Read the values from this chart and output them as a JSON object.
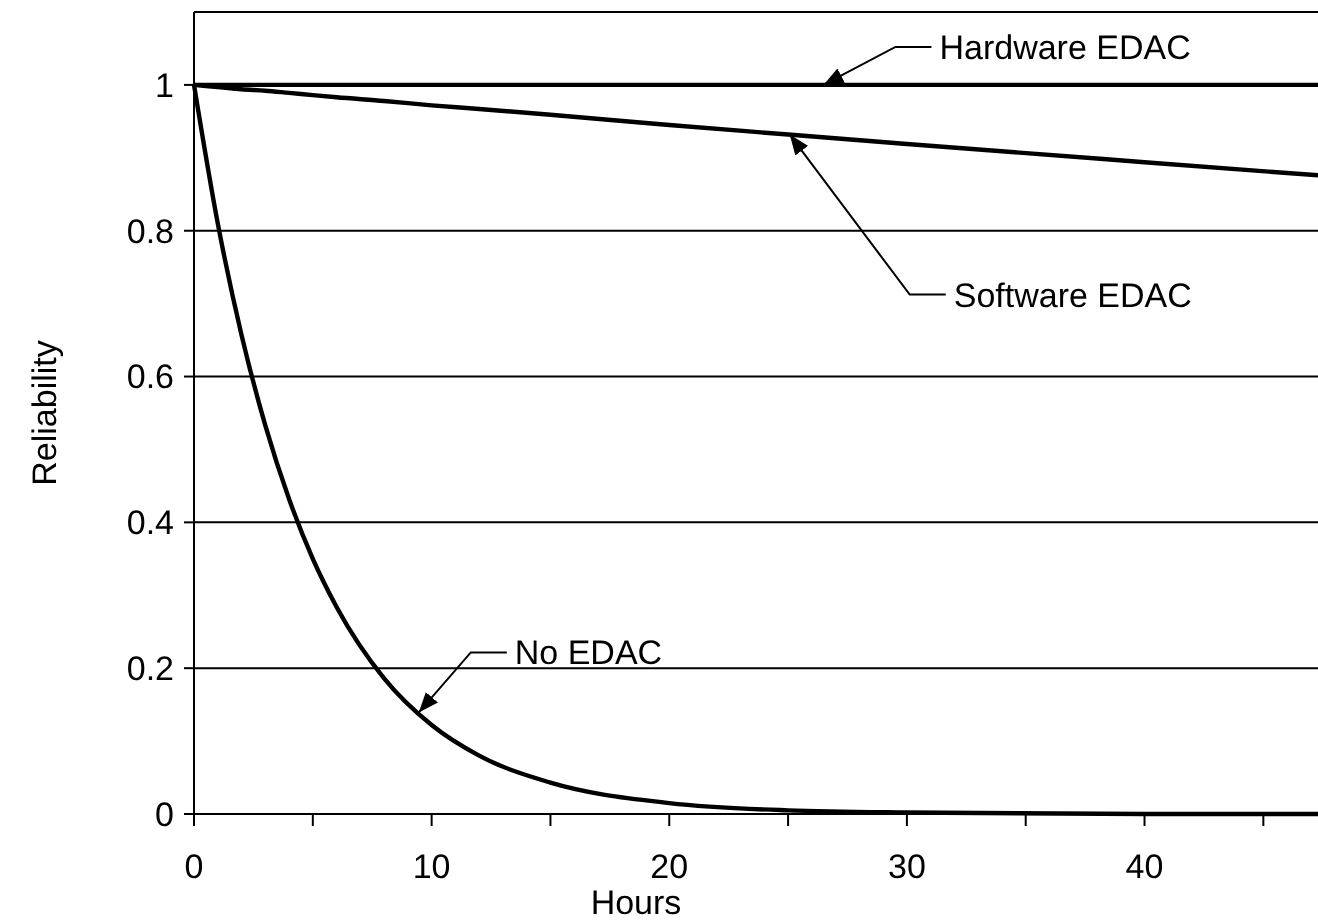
{
  "chart_data": {
    "type": "line",
    "xlabel": "Hours",
    "ylabel": "Reliability",
    "x": [
      0,
      1,
      2,
      3,
      4,
      5,
      6,
      8,
      10,
      12,
      15,
      20,
      25,
      30,
      40,
      47.3
    ],
    "series": [
      {
        "name": "Hardware EDAC",
        "color": "#000000",
        "values": [
          1,
          1,
          1,
          1,
          1,
          1,
          1,
          1,
          1,
          1,
          1,
          1,
          1,
          1,
          1,
          1
        ]
      },
      {
        "name": "Software EDAC",
        "color": "#000000",
        "values": [
          1,
          0.997,
          0.994,
          0.992,
          0.989,
          0.986,
          0.983,
          0.978,
          0.972,
          0.967,
          0.959,
          0.945,
          0.932,
          0.919,
          0.894,
          0.876
        ]
      },
      {
        "name": "No EDAC",
        "color": "#000000",
        "values": [
          1,
          0.81,
          0.657,
          0.533,
          0.432,
          0.35,
          0.284,
          0.186,
          0.122,
          0.08,
          0.043,
          0.015,
          0.005,
          0.002,
          0,
          0
        ]
      }
    ],
    "xlim": [
      0,
      47.3
    ],
    "ylim": [
      0,
      1.1
    ],
    "xticks": [
      0,
      {
        "value": 5,
        "label": null
      },
      10,
      {
        "value": 15,
        "label": null
      },
      20,
      {
        "value": 25,
        "label": null
      },
      30,
      {
        "value": 35,
        "label": null
      },
      40,
      {
        "value": 45,
        "label": null
      }
    ],
    "yticks": [
      0,
      0.2,
      0.4,
      0.6,
      0.8,
      1
    ],
    "grid": "y",
    "marker": "none",
    "line_style": "solid"
  }
}
